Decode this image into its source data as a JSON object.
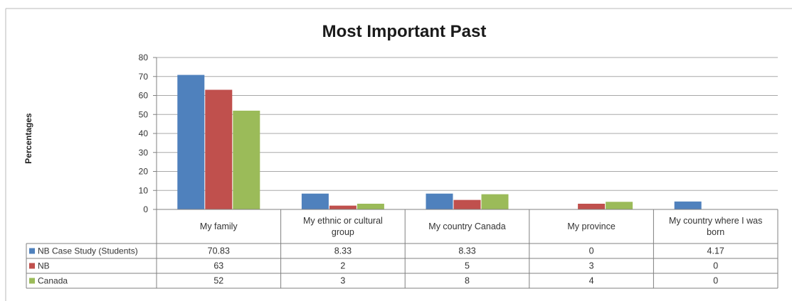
{
  "chart_data": {
    "type": "bar",
    "title": "Most Important Past",
    "xlabel": "",
    "ylabel": "Percentages",
    "ylim": [
      0,
      80
    ],
    "yticks": [
      0,
      10,
      20,
      30,
      40,
      50,
      60,
      70,
      80
    ],
    "grid": true,
    "legend": "data-table-left",
    "categories": [
      [
        "My family"
      ],
      [
        "My ethnic or cultural",
        "group"
      ],
      [
        "My country Canada"
      ],
      [
        "My province"
      ],
      [
        "My country where I was",
        "born"
      ]
    ],
    "series": [
      {
        "name": "NB Case Study (Students)",
        "color": "#4f81bd",
        "values": [
          70.83,
          8.33,
          8.33,
          0,
          4.17
        ],
        "labels": [
          "70.83",
          "8.33",
          "8.33",
          "0",
          "4.17"
        ]
      },
      {
        "name": "NB",
        "color": "#c0504d",
        "values": [
          63,
          2,
          5,
          3,
          0
        ],
        "labels": [
          "63",
          "2",
          "5",
          "3",
          "0"
        ]
      },
      {
        "name": "Canada",
        "color": "#9bbb59",
        "values": [
          52,
          3,
          8,
          4,
          0
        ],
        "labels": [
          "52",
          "3",
          "8",
          "4",
          "0"
        ]
      }
    ]
  }
}
